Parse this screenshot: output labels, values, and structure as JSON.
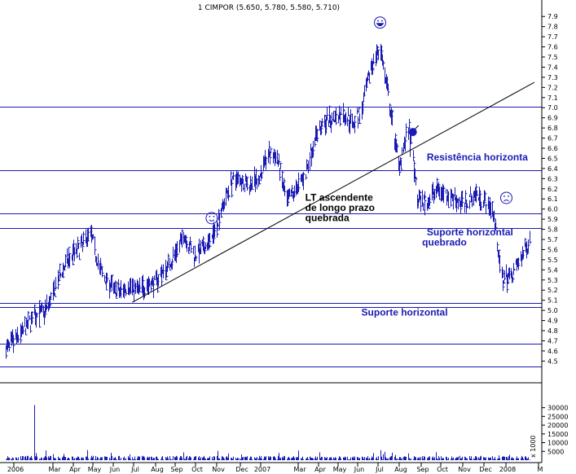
{
  "chart_data": {
    "type": "bar",
    "title": "1 CIMPOR (5.650, 5.780, 5.580, 5.710)",
    "price_axis": {
      "range": [
        4.35,
        7.95
      ],
      "ticks": [
        "7.9",
        "7.8",
        "7.7",
        "7.6",
        "7.5",
        "7.4",
        "7.3",
        "7.2",
        "7.1",
        "7.0",
        "6.9",
        "6.8",
        "6.7",
        "6.6",
        "6.5",
        "6.4",
        "6.3",
        "6.2",
        "6.1",
        "6.0",
        "5.9",
        "5.8",
        "5.7",
        "5.6",
        "5.5",
        "5.4",
        "5.3",
        "5.2",
        "5.1",
        "5.0",
        "4.9",
        "4.8",
        "4.7",
        "4.6",
        "4.5"
      ]
    },
    "volume_axis": {
      "range": [
        0,
        34000
      ],
      "ticks": [
        "30000",
        "25000",
        "20000",
        "15000",
        "10000",
        "5000"
      ],
      "unit_label": "x 1000"
    },
    "x_axis": {
      "labels": [
        "2006",
        "Mar",
        "Apr",
        "May",
        "Jun",
        "Jul",
        "Aug",
        "Sep",
        "Oct",
        "Nov",
        "Dec",
        "2007",
        "Mar",
        "Apr",
        "May",
        "Jun",
        "Jul",
        "Aug",
        "Sep",
        "Oct",
        "Nov",
        "Dec",
        "2008",
        "M"
      ]
    },
    "horizontal_lines": [
      7.01,
      6.38,
      5.96,
      5.81,
      5.07,
      5.03,
      4.67,
      4.45
    ],
    "trend_line": {
      "from": {
        "date": "2006-07-10",
        "price": 5.08
      },
      "to": {
        "date": "2008-03-03",
        "price": 7.25
      }
    },
    "price_series": [
      {
        "date": "2006-01-02",
        "price": 4.62
      },
      {
        "date": "2006-01-16",
        "price": 4.7
      },
      {
        "date": "2006-01-30",
        "price": 4.82
      },
      {
        "date": "2006-02-13",
        "price": 4.95
      },
      {
        "date": "2006-02-27",
        "price": 4.98
      },
      {
        "date": "2006-03-13",
        "price": 5.15
      },
      {
        "date": "2006-03-27",
        "price": 5.4
      },
      {
        "date": "2006-04-10",
        "price": 5.55
      },
      {
        "date": "2006-04-24",
        "price": 5.62
      },
      {
        "date": "2006-05-08",
        "price": 5.78
      },
      {
        "date": "2006-05-22",
        "price": 5.4
      },
      {
        "date": "2006-06-05",
        "price": 5.25
      },
      {
        "date": "2006-06-19",
        "price": 5.18
      },
      {
        "date": "2006-07-03",
        "price": 5.25
      },
      {
        "date": "2006-07-17",
        "price": 5.2
      },
      {
        "date": "2006-07-31",
        "price": 5.25
      },
      {
        "date": "2006-08-14",
        "price": 5.28
      },
      {
        "date": "2006-08-28",
        "price": 5.4
      },
      {
        "date": "2006-09-11",
        "price": 5.55
      },
      {
        "date": "2006-09-25",
        "price": 5.75
      },
      {
        "date": "2006-10-09",
        "price": 5.55
      },
      {
        "date": "2006-10-23",
        "price": 5.6
      },
      {
        "date": "2006-11-06",
        "price": 5.7
      },
      {
        "date": "2006-11-20",
        "price": 6.0
      },
      {
        "date": "2006-12-04",
        "price": 6.25
      },
      {
        "date": "2006-12-18",
        "price": 6.3
      },
      {
        "date": "2007-01-01",
        "price": 6.25
      },
      {
        "date": "2007-01-15",
        "price": 6.3
      },
      {
        "date": "2007-01-29",
        "price": 6.55
      },
      {
        "date": "2007-02-12",
        "price": 6.5
      },
      {
        "date": "2007-02-26",
        "price": 6.05
      },
      {
        "date": "2007-03-12",
        "price": 6.2
      },
      {
        "date": "2007-03-26",
        "price": 6.35
      },
      {
        "date": "2007-04-09",
        "price": 6.7
      },
      {
        "date": "2007-04-23",
        "price": 6.85
      },
      {
        "date": "2007-05-07",
        "price": 6.9
      },
      {
        "date": "2007-05-21",
        "price": 6.95
      },
      {
        "date": "2007-06-04",
        "price": 6.85
      },
      {
        "date": "2007-06-18",
        "price": 6.95
      },
      {
        "date": "2007-07-02",
        "price": 7.4
      },
      {
        "date": "2007-07-16",
        "price": 7.6
      },
      {
        "date": "2007-07-30",
        "price": 7.0
      },
      {
        "date": "2007-08-13",
        "price": 6.45
      },
      {
        "date": "2007-08-27",
        "price": 6.8
      },
      {
        "date": "2007-09-10",
        "price": 6.1
      },
      {
        "date": "2007-09-24",
        "price": 6.05
      },
      {
        "date": "2007-10-08",
        "price": 6.2
      },
      {
        "date": "2007-10-22",
        "price": 6.15
      },
      {
        "date": "2007-11-05",
        "price": 6.1
      },
      {
        "date": "2007-11-19",
        "price": 6.05
      },
      {
        "date": "2007-12-03",
        "price": 6.15
      },
      {
        "date": "2007-12-17",
        "price": 6.1
      },
      {
        "date": "2007-12-31",
        "price": 6.0
      },
      {
        "date": "2008-01-14",
        "price": 5.3
      },
      {
        "date": "2008-01-28",
        "price": 5.35
      },
      {
        "date": "2008-02-11",
        "price": 5.5
      },
      {
        "date": "2008-02-25",
        "price": 5.71
      }
    ],
    "annotations": [
      {
        "id": "resistencia",
        "text": "Resistência horizonta",
        "date": "2007-09-24",
        "price": 6.48
      },
      {
        "id": "lt1",
        "text": "LT ascendente",
        "date": "2007-03-26",
        "price": 6.08
      },
      {
        "id": "lt2",
        "text": "de longo prazo",
        "date": "2007-03-26",
        "price": 5.98
      },
      {
        "id": "lt3",
        "text": "quebrada",
        "date": "2007-03-26",
        "price": 5.88
      },
      {
        "id": "sup1",
        "text": "Suporte horizontal",
        "date": "2007-09-24",
        "price": 5.74
      },
      {
        "id": "sup2",
        "text": "quebrado",
        "date": "2007-09-17",
        "price": 5.64
      },
      {
        "id": "sup3",
        "text": "Suporte horizontal",
        "date": "2007-06-18",
        "price": 4.95
      }
    ],
    "markers": [
      {
        "name": "happy-face-marker",
        "date": "2006-11-06",
        "price": 5.91
      },
      {
        "name": "laughing-face-marker",
        "date": "2007-07-16",
        "price": 7.84
      },
      {
        "name": "bomb-marker",
        "date": "2007-09-03",
        "price": 6.76
      },
      {
        "name": "sad-face-marker",
        "date": "2008-01-21",
        "price": 6.11
      }
    ],
    "colors": {
      "price": "#1a1ab4",
      "lines": "#1a1ab4",
      "trend": "#000000",
      "annotation": "#1a1ab4"
    }
  }
}
